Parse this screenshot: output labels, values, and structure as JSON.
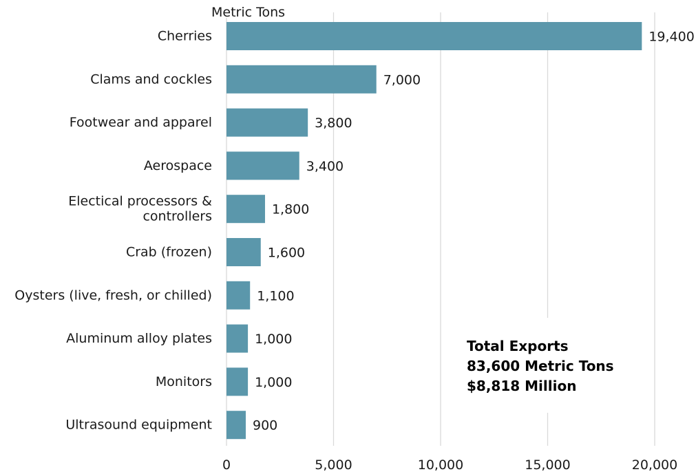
{
  "chart_data": {
    "type": "bar",
    "orientation": "horizontal",
    "unit_label": "Metric Tons",
    "categories": [
      [
        "Cherries"
      ],
      [
        "Clams and cockles"
      ],
      [
        "Footwear and apparel"
      ],
      [
        "Aerospace"
      ],
      [
        "Electical processors &",
        "controllers"
      ],
      [
        "Crab (frozen)"
      ],
      [
        "Oysters (live, fresh, or chilled)"
      ],
      [
        "Aluminum alloy plates"
      ],
      [
        "Monitors"
      ],
      [
        "Ultrasound equipment"
      ]
    ],
    "values": [
      19400,
      7000,
      3800,
      3400,
      1800,
      1600,
      1100,
      1000,
      1000,
      900
    ],
    "value_labels": [
      "19,400",
      "7,000",
      "3,800",
      "3,400",
      "1,800",
      "1,600",
      "1,100",
      "1,000",
      "1,000",
      "900"
    ],
    "xlim": [
      0,
      20000
    ],
    "xticks": [
      0,
      5000,
      10000,
      15000,
      20000
    ],
    "xtick_labels": [
      "0",
      "5,000",
      "10,000",
      "15,000",
      "20,000"
    ],
    "grid": "vertical",
    "bar_color": "#5b97ab",
    "grid_color": "#d9d9d9",
    "summary": [
      "Total Exports",
      "83,600 Metric Tons",
      "$8,818 Million"
    ]
  }
}
